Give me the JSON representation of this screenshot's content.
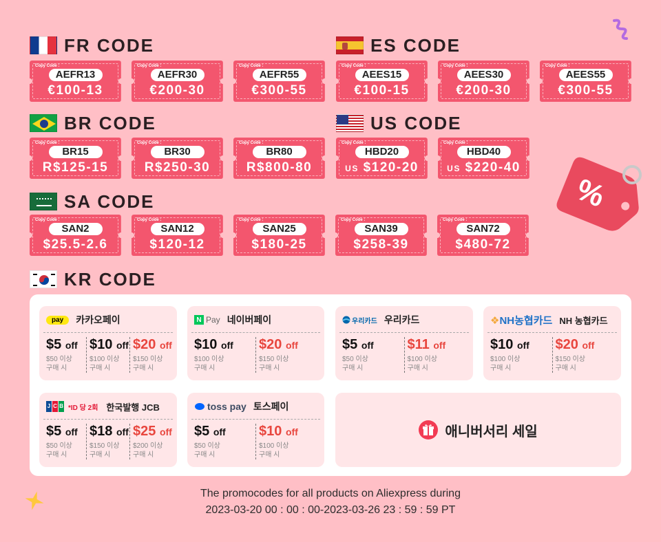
{
  "sections": {
    "fr": {
      "title": "FR CODE"
    },
    "es": {
      "title": "ES CODE"
    },
    "br": {
      "title": "BR CODE"
    },
    "us": {
      "title": "US CODE"
    },
    "sa": {
      "title": "SA CODE"
    },
    "kr": {
      "title": "KR CODE"
    }
  },
  "copy_label": "Copy Code :",
  "fr_coupons": [
    {
      "code": "AEFR13",
      "amount": "€100-13"
    },
    {
      "code": "AEFR30",
      "amount": "€200-30"
    },
    {
      "code": "AEFR55",
      "amount": "€300-55"
    }
  ],
  "es_coupons": [
    {
      "code": "AEES15",
      "amount": "€100-15"
    },
    {
      "code": "AEES30",
      "amount": "€200-30"
    },
    {
      "code": "AEES55",
      "amount": "€300-55"
    }
  ],
  "br_coupons": [
    {
      "code": "BR15",
      "amount": "R$125-15"
    },
    {
      "code": "BR30",
      "amount": "R$250-30"
    },
    {
      "code": "BR80",
      "amount": "R$800-80"
    }
  ],
  "us_coupons": [
    {
      "code": "HBD20",
      "prefix": "US",
      "amount": "$120-20"
    },
    {
      "code": "HBD40",
      "prefix": "US",
      "amount": "$220-40"
    }
  ],
  "sa_coupons": [
    {
      "code": "SAN2",
      "amount": "$25.5-2.6"
    },
    {
      "code": "SAN12",
      "amount": "$120-12"
    },
    {
      "code": "SAN25",
      "amount": "$180-25"
    },
    {
      "code": "SAN39",
      "amount": "$258-39"
    },
    {
      "code": "SAN72",
      "amount": "$480-72"
    }
  ],
  "kr": {
    "kakao": {
      "logo": "pay",
      "name": "카카오페이",
      "offers": [
        {
          "price": "$5",
          "off": "off",
          "cond1": "$50 이상",
          "cond2": "구매 시"
        },
        {
          "price": "$10",
          "off": "off",
          "cond1": "$100 이상",
          "cond2": "구매 시"
        },
        {
          "price": "$20",
          "off": "off",
          "cond1": "$150 이상",
          "cond2": "구매 시"
        }
      ]
    },
    "naver": {
      "logo_n": "N",
      "logo": "Pay",
      "name": "네이버페이",
      "offers": [
        {
          "price": "$10",
          "off": "off",
          "cond1": "$100 이상",
          "cond2": "구매 시"
        },
        {
          "price": "$20",
          "off": "off",
          "cond1": "$150 이상",
          "cond2": "구매 시"
        }
      ]
    },
    "woori": {
      "logo": "우리카드",
      "name": "우리카드",
      "offers": [
        {
          "price": "$5",
          "off": "off",
          "cond1": "$50 이상",
          "cond2": "구매 시"
        },
        {
          "price": "$11",
          "off": "off",
          "cond1": "$100 이상",
          "cond2": "구매 시"
        }
      ]
    },
    "nh": {
      "logo": "NH농협카드",
      "name": "NH 농협카드",
      "offers": [
        {
          "price": "$10",
          "off": "off",
          "cond1": "$100 이상",
          "cond2": "구매 시"
        },
        {
          "price": "$20",
          "off": "off",
          "cond1": "$150 이상",
          "cond2": "구매 시"
        }
      ]
    },
    "jcb": {
      "logo": "JCB",
      "note": "*ID 당 2회",
      "name": "한국발행 JCB",
      "offers": [
        {
          "price": "$5",
          "off": "off",
          "cond1": "$50 이상",
          "cond2": "구매 시"
        },
        {
          "price": "$18",
          "off": "off",
          "cond1": "$150 이상",
          "cond2": "구매 시"
        },
        {
          "price": "$25",
          "off": "off",
          "cond1": "$200 이상",
          "cond2": "구매 시"
        }
      ]
    },
    "toss": {
      "logo": "toss pay",
      "name": "토스페이",
      "offers": [
        {
          "price": "$5",
          "off": "off",
          "cond1": "$50 이상",
          "cond2": "구매 시"
        },
        {
          "price": "$10",
          "off": "off",
          "cond1": "$100 이상",
          "cond2": "구매 시"
        }
      ]
    },
    "anniversary": {
      "label": "애니버서리 세일"
    }
  },
  "footer": {
    "line1": "The promocodes for all products on Aliexpress during",
    "line2": "2023-03-20 00 : 00 : 00-2023-03-26 23 : 59 : 59 PT"
  },
  "colors": {
    "background": "#ffbfc6",
    "coupon": "#f3566e",
    "red_price": "#e8463e"
  },
  "icons": [
    "flag-fr-icon",
    "flag-es-icon",
    "flag-br-icon",
    "flag-us-icon",
    "flag-sa-icon",
    "flag-kr-icon",
    "discount-tag-icon",
    "gift-icon",
    "star-icon",
    "ribbon-icon"
  ]
}
